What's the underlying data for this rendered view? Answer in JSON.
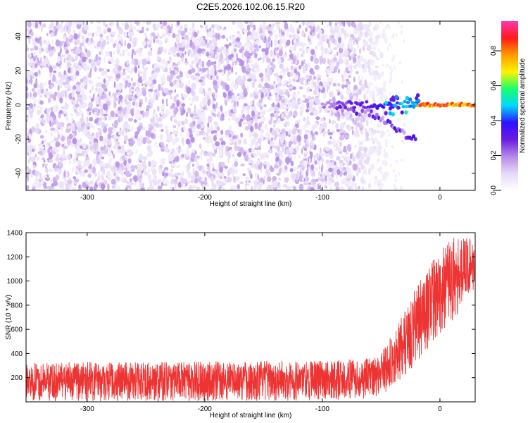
{
  "title": "C2E5.2026.102.06.15.R20",
  "chart_data": [
    {
      "type": "heatmap",
      "xlabel": "Height of straight line (km)",
      "ylabel": "Frequency (Hz)",
      "xlim": [
        -352,
        30
      ],
      "ylim": [
        -50,
        49
      ],
      "x_ticks": [
        -300,
        -200,
        -100,
        0
      ],
      "y_ticks": [
        -40,
        -20,
        0,
        20,
        40
      ],
      "colorbar": {
        "label": "Normalized spectral amplitude",
        "range": [
          0,
          0.97
        ],
        "ticks": [
          0,
          0.2,
          0.4,
          0.6,
          0.8
        ],
        "tick_labels": [
          "0.0",
          "0.2",
          "0.4",
          "0.6",
          "0.8"
        ],
        "colormap": [
          "#ffffff",
          "#e6d9f7",
          "#b58ae8",
          "#6a1be0",
          "#2f12ff",
          "#00d8ff",
          "#19ff6a",
          "#fff200",
          "#ff9c00",
          "#ff1a1a",
          "#ff38b0"
        ]
      },
      "signal_track": {
        "noise_extent_x": [
          -352,
          -50
        ],
        "signal_start_x": -100,
        "signal_center_hz": 0,
        "strong_signal_x": [
          -20,
          30
        ],
        "spread_branch": {
          "x": [
            -90,
            -60,
            -40,
            -20
          ],
          "y": [
            0,
            -5,
            -12,
            -22
          ]
        }
      }
    },
    {
      "type": "line",
      "xlabel": "Height of straight line (km)",
      "ylabel": "SNR (10 * v/v)",
      "xlim": [
        -352,
        30
      ],
      "ylim": [
        0,
        1400
      ],
      "x_ticks": [
        -300,
        -200,
        -100,
        0
      ],
      "y_ticks": [
        200,
        400,
        600,
        800,
        1000,
        1200,
        1400
      ],
      "color": "#ee3333",
      "series": [
        {
          "x": [
            -352,
            -300,
            -250,
            -200,
            -150,
            -100,
            -80,
            -60,
            -50,
            -40,
            -30,
            -20,
            -10,
            0,
            10,
            20,
            28
          ],
          "y_mean": [
            150,
            150,
            155,
            160,
            165,
            170,
            175,
            185,
            230,
            330,
            470,
            620,
            760,
            880,
            980,
            1080,
            1120
          ],
          "y_upper": [
            320,
            330,
            330,
            335,
            340,
            345,
            350,
            360,
            430,
            560,
            760,
            950,
            1120,
            1250,
            1360,
            1390,
            1350
          ]
        }
      ]
    }
  ]
}
